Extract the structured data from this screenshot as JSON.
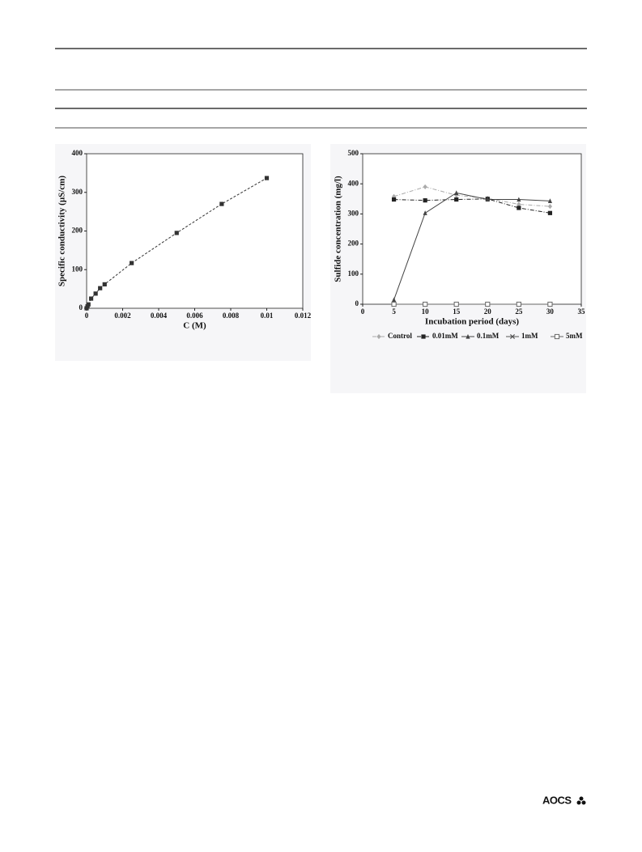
{
  "chart_data": [
    {
      "type": "line",
      "x_label": "C (M)",
      "y_label": "Specific conductivity (µS/cm)",
      "x": [
        0,
        5e-05,
        0.0001,
        0.00025,
        0.0005,
        0.00075,
        0.001,
        0.0025,
        0.005,
        0.0075,
        0.01
      ],
      "values": [
        0,
        5,
        10,
        25,
        38,
        52,
        62,
        117,
        195,
        270,
        337
      ],
      "color": "#333333",
      "line_style": "dashed",
      "marker": "square",
      "xlim": [
        0,
        0.012
      ],
      "xticks": [
        0,
        0.002,
        0.004,
        0.006,
        0.008,
        0.01,
        0.012
      ],
      "ylim": [
        0,
        400
      ],
      "yticks": [
        0,
        100,
        200,
        300,
        400
      ]
    },
    {
      "type": "line",
      "x_label": "Incubation period (days)",
      "y_label": "Sulfide concentration (mg/l)",
      "x": [
        5,
        10,
        15,
        20,
        25,
        30
      ],
      "series": [
        {
          "name": "Control",
          "color": "#aaaaaa",
          "marker": "diamond",
          "line_style": "dashdot",
          "values": [
            358,
            390,
            362,
            352,
            332,
            325
          ]
        },
        {
          "name": "0.01mM",
          "color": "#222222",
          "marker": "square",
          "line_style": "dashdot",
          "values": [
            348,
            345,
            348,
            350,
            320,
            303
          ]
        },
        {
          "name": "0.1mM",
          "color": "#444444",
          "marker": "triangle",
          "line_style": "solid",
          "values": [
            15,
            303,
            370,
            348,
            348,
            343
          ]
        },
        {
          "name": "1mM",
          "color": "#555555",
          "marker": "cross",
          "line_style": "solid",
          "values": [
            0,
            0,
            0,
            0,
            0,
            0
          ]
        },
        {
          "name": "5mM",
          "color": "#666666",
          "marker": "open-square",
          "line_style": "solid",
          "values": [
            0,
            0,
            0,
            0,
            0,
            0
          ]
        }
      ],
      "xlim": [
        0,
        35
      ],
      "xticks": [
        0,
        5,
        10,
        15,
        20,
        25,
        30,
        35
      ],
      "ylim": [
        0,
        500
      ],
      "yticks": [
        0,
        100,
        200,
        300,
        400,
        500
      ]
    }
  ],
  "logo": "AOCS"
}
